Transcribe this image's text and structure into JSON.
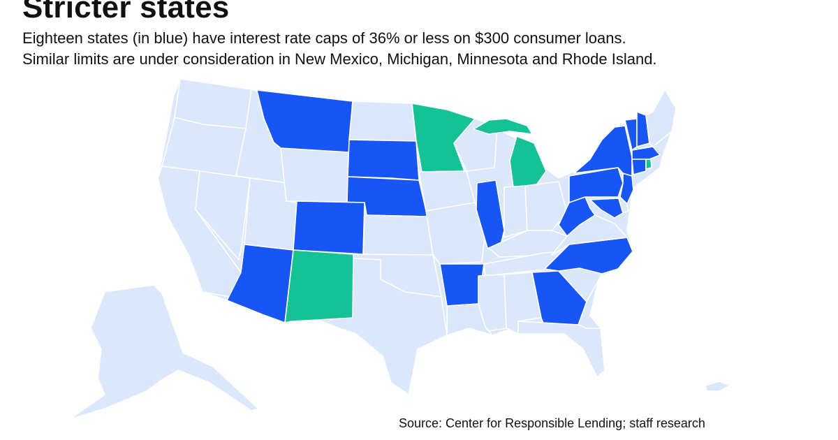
{
  "header": {
    "title": "Stricter states",
    "subtitle_line1": "Eighteen states (in blue) have interest rate caps of 36% or less on $300 consumer loans.",
    "subtitle_line2": "Similar limits are under consideration in New Mexico, Michigan, Minnesota and Rhode Island."
  },
  "legend": {
    "capped_states_color": "#1756f5",
    "under_consideration_color": "#14c296",
    "other_states_color": "#dbe7fb",
    "border_color": "#ffffff"
  },
  "map_data": {
    "capped_states": [
      "Montana",
      "South Dakota",
      "Nebraska",
      "Colorado",
      "Arizona",
      "Illinois",
      "Arkansas",
      "Georgia",
      "North Carolina",
      "West Virginia",
      "Maryland",
      "Pennsylvania",
      "New Jersey",
      "New York",
      "Connecticut",
      "Massachusetts",
      "Vermont",
      "New Hampshire"
    ],
    "under_consideration_states": [
      "New Mexico",
      "Michigan",
      "Minnesota",
      "Rhode Island"
    ]
  },
  "footer": {
    "source": "Source: Center for Responsible Lending; staff research"
  }
}
